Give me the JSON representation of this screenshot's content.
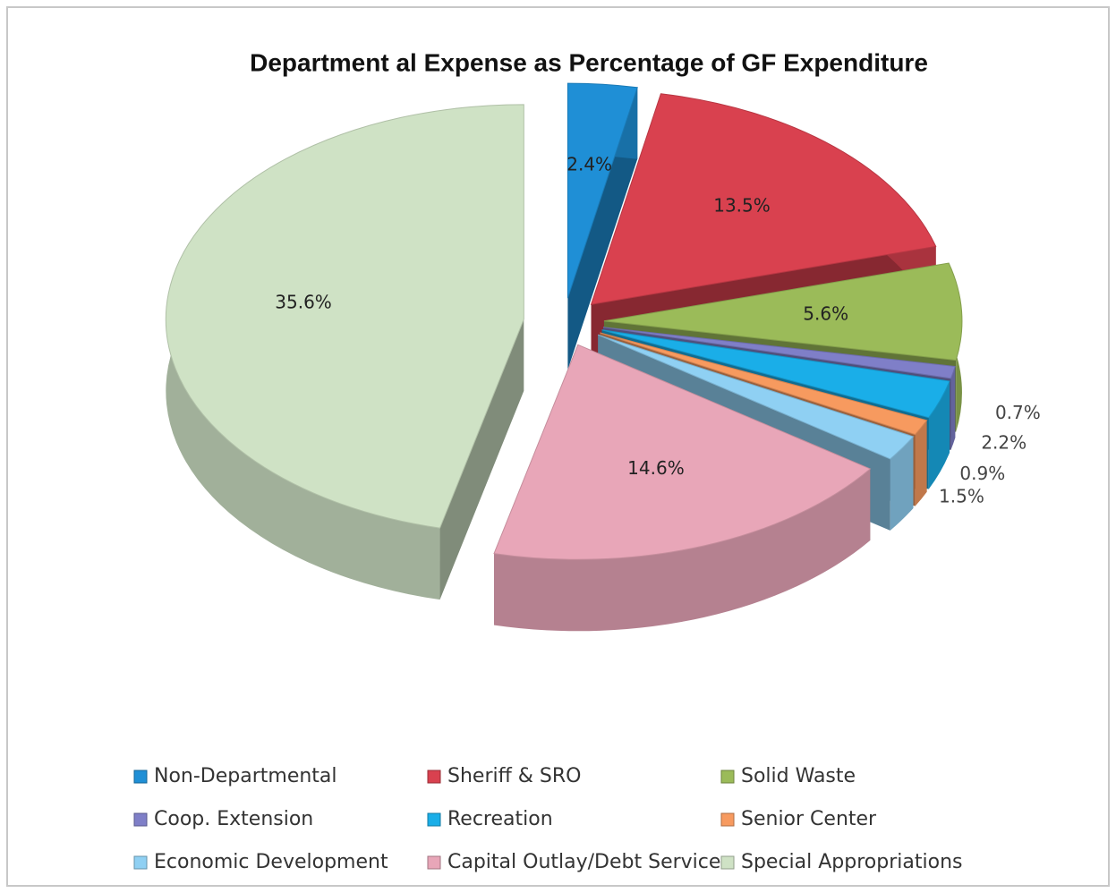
{
  "chart_data": {
    "type": "pie3d",
    "title": "Department al Expense as Percentage of GF Expenditure",
    "categories": [
      "Non-Departmental",
      "Sheriff & SRO",
      "Solid Waste",
      "Coop. Extension",
      "Recreation",
      "Senior Center",
      "Economic Development",
      "Capital Outlay/Debt Service",
      "Special Appropriations"
    ],
    "values": [
      2.4,
      13.5,
      5.6,
      0.7,
      2.2,
      0.9,
      1.5,
      14.6,
      35.6
    ],
    "value_labels": [
      "2.4%",
      "13.5%",
      "5.6%",
      "0.7%",
      "2.2%",
      "0.9%",
      "1.5%",
      "14.6%",
      "35.6%"
    ],
    "colors": [
      "#1f8fd6",
      "#d9414f",
      "#9bbb59",
      "#7f7fc8",
      "#1aaee8",
      "#f79a5f",
      "#8fd0f3",
      "#e8a6b8",
      "#cfe2c5"
    ],
    "legend": "bottom"
  }
}
